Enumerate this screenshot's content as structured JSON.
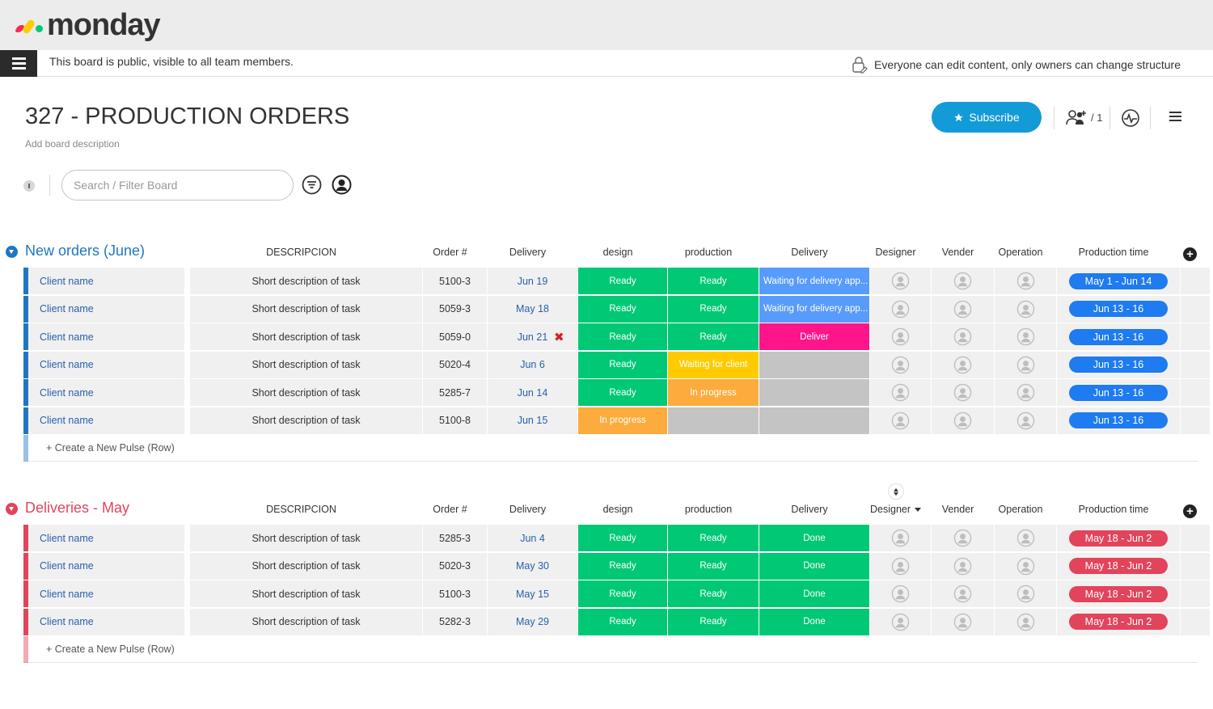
{
  "app": {
    "logo_text": "monday",
    "logo_colors": [
      "#f62b54",
      "#ffcc00",
      "#00ca72"
    ]
  },
  "infobar": {
    "public_note": "This board is public, visible to all team members.",
    "edit_note": "Everyone can edit content, only owners can change structure"
  },
  "board": {
    "title": "327 - PRODUCTION ORDERS",
    "description": "Add board description",
    "subscribe_label": "Subscribe",
    "members_count": "/ 1",
    "search_placeholder": "Search / Filter Board"
  },
  "colors": {
    "accent_blue": "#139bd8",
    "group_blue": "#1f76c2",
    "group_red": "#e2445c",
    "ready_green": "#00c875",
    "in_progress_orange": "#fdab3d",
    "waiting_client_yellow": "#ffcb00",
    "waiting_delivery_blue": "#579bfc",
    "deliver_pink": "#ff158a",
    "timeline_blue": "#1e7bf0",
    "timeline_red": "#e2445c",
    "empty_gray": "#c4c4c4"
  },
  "columns": {
    "descripcion": "DESCRIPCION",
    "order": "Order #",
    "delivery_date": "Delivery",
    "design": "design",
    "production": "production",
    "delivery_status": "Delivery",
    "designer": "Designer",
    "vender": "Vender",
    "operation": "Operation",
    "production_time": "Production time"
  },
  "groups": [
    {
      "title": "New orders (June)",
      "color": "#1f76c2",
      "add_row_label": "+ Create a New Pulse (Row)",
      "timeline_color": "#1e7bf0",
      "rows": [
        {
          "name": "Client name",
          "desc": "Short description of task",
          "order": "5100-3",
          "delivery": "Jun 19",
          "overdue": false,
          "design": "Ready",
          "production": "Ready",
          "delivery_status": "Waiting for delivery app...",
          "timeline": "May 1 - Jun 14"
        },
        {
          "name": "Client name",
          "desc": "Short description of task",
          "order": "5059-3",
          "delivery": "May 18",
          "overdue": false,
          "design": "Ready",
          "production": "Ready",
          "delivery_status": "Waiting for delivery app...",
          "timeline": "Jun 13 - 16"
        },
        {
          "name": "Client name",
          "desc": "Short description of task",
          "order": "5059-0",
          "delivery": "Jun 21",
          "overdue": true,
          "design": "Ready",
          "production": "Ready",
          "delivery_status": "Deliver",
          "timeline": "Jun 13 - 16"
        },
        {
          "name": "Client name",
          "desc": "Short description of task",
          "order": "5020-4",
          "delivery": "Jun 6",
          "overdue": false,
          "design": "Ready",
          "production": "Waiting for client",
          "delivery_status": "",
          "timeline": "Jun 13 - 16"
        },
        {
          "name": "Client name",
          "desc": "Short description of task",
          "order": "5285-7",
          "delivery": "Jun 14",
          "overdue": false,
          "design": "Ready",
          "production": "In progress",
          "delivery_status": "",
          "timeline": "Jun 13 - 16"
        },
        {
          "name": "Client name",
          "desc": "Short description of task",
          "order": "5100-8",
          "delivery": "Jun 15",
          "overdue": false,
          "design": "In progress",
          "production": "",
          "delivery_status": "",
          "timeline": "Jun 13 - 16"
        }
      ]
    },
    {
      "title": "Deliveries - May",
      "color": "#e2445c",
      "add_row_label": "+ Create a New Pulse (Row)",
      "timeline_color": "#e2445c",
      "rows": [
        {
          "name": "Client name",
          "desc": "Short description of task",
          "order": "5285-3",
          "delivery": "Jun 4",
          "overdue": false,
          "design": "Ready",
          "production": "Ready",
          "delivery_status": "Done",
          "timeline": "May 18 - Jun 2"
        },
        {
          "name": "Client name",
          "desc": "Short description of task",
          "order": "5020-3",
          "delivery": "May 30",
          "overdue": false,
          "design": "Ready",
          "production": "Ready",
          "delivery_status": "Done",
          "timeline": "May 18 - Jun 2"
        },
        {
          "name": "Client name",
          "desc": "Short description of task",
          "order": "5100-3",
          "delivery": "May 15",
          "overdue": false,
          "design": "Ready",
          "production": "Ready",
          "delivery_status": "Done",
          "timeline": "May 18 - Jun 2"
        },
        {
          "name": "Client name",
          "desc": "Short description of task",
          "order": "5282-3",
          "delivery": "May 29",
          "overdue": false,
          "design": "Ready",
          "production": "Ready",
          "delivery_status": "Done",
          "timeline": "May 18 - Jun 2"
        }
      ]
    }
  ]
}
